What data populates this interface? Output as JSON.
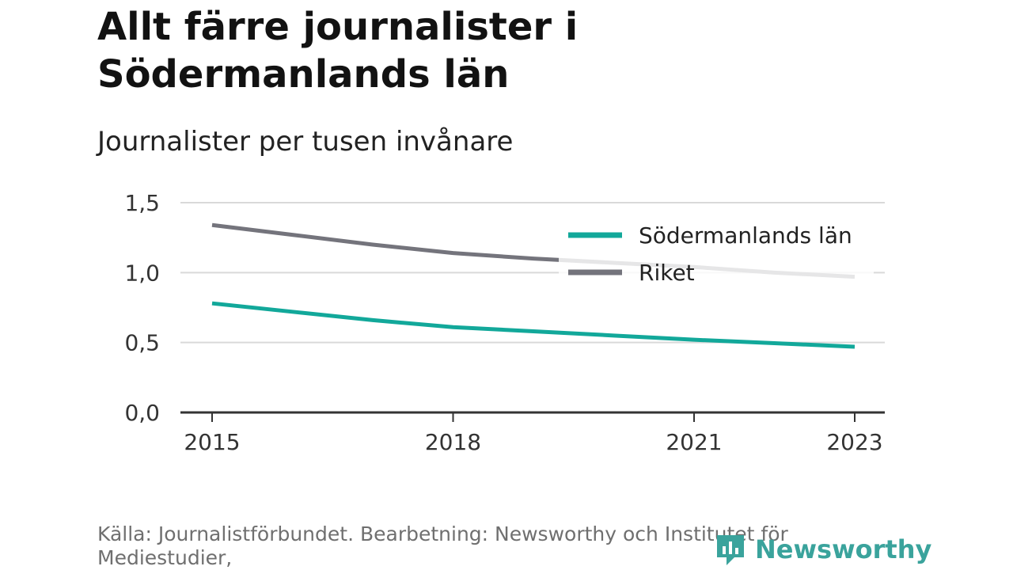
{
  "header": {
    "title_line1": "Allt färre journalister i",
    "title_line2": "Södermanlands län",
    "subtitle": "Journalister per tusen invånare"
  },
  "footer": {
    "source_line1": "Källa: Journalistförbundet. Bearbetning: Newsworthy och Institutet för",
    "source_line2": "Mediestudier,",
    "brand_name": "Newsworthy",
    "brand_icon": "newsworthy-logo-icon",
    "brand_color": "#3aa39c"
  },
  "chart_data": {
    "type": "line",
    "x": [
      2015,
      2016,
      2017,
      2018,
      2019,
      2020,
      2021,
      2022,
      2023
    ],
    "x_ticks": [
      2015,
      2018,
      2021,
      2023
    ],
    "x_tick_labels": [
      "2015",
      "2018",
      "2021",
      "2023"
    ],
    "y_ticks": [
      0,
      0.5,
      1.0,
      1.5
    ],
    "y_tick_labels": [
      "0,0",
      "0,5",
      "1,0",
      "1,5"
    ],
    "xlim": [
      2015,
      2023
    ],
    "ylim": [
      0,
      1.5
    ],
    "grid": true,
    "legend_position": "top-right",
    "xlabel": "",
    "ylabel": "",
    "series": [
      {
        "name": "Södermanlands län",
        "color": "#12a89a",
        "values": [
          0.78,
          0.72,
          0.66,
          0.61,
          0.58,
          0.55,
          0.52,
          0.495,
          0.47
        ]
      },
      {
        "name": "Riket",
        "color": "#74747c",
        "values": [
          1.34,
          1.27,
          1.2,
          1.14,
          1.1,
          1.07,
          1.04,
          1.0,
          0.97
        ]
      }
    ]
  }
}
